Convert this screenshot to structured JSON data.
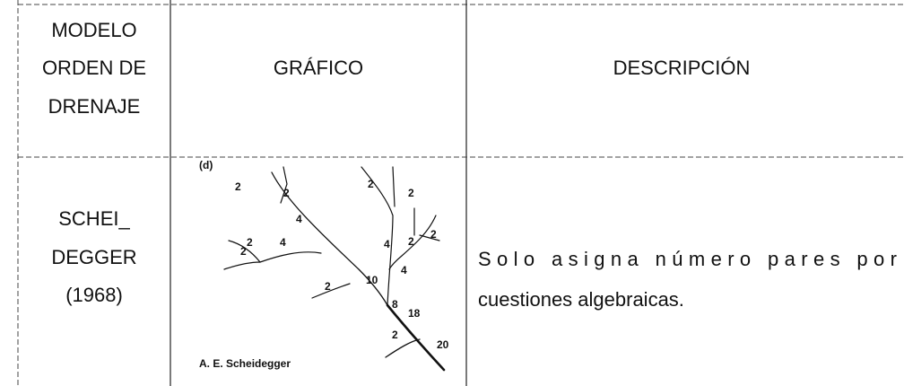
{
  "header": {
    "model": [
      "MODELO",
      "ORDEN DE",
      "DRENAJE"
    ],
    "graphic": "GRÁFICO",
    "description": "DESCRIPCIÓN"
  },
  "row": {
    "model": [
      "SCHEI_",
      "DEGGER",
      "(1968)"
    ],
    "graphic": {
      "panel_label": "(d)",
      "credit": "A. E. Scheidegger",
      "order_labels": [
        2,
        2,
        4,
        2,
        4,
        2,
        2,
        10,
        2,
        2,
        4,
        2,
        2,
        4,
        8,
        18,
        2,
        20
      ]
    },
    "description": [
      "Solo asigna número pares por",
      "cuestiones algebraicas."
    ]
  }
}
